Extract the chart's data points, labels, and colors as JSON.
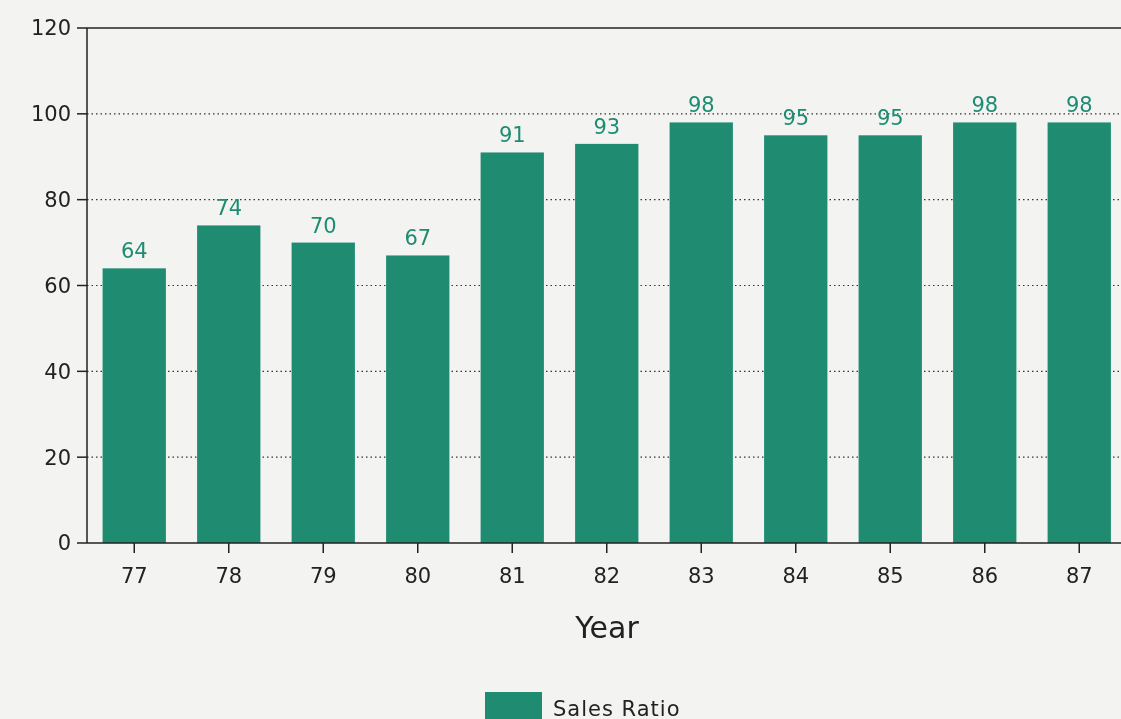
{
  "chart_data": {
    "type": "bar",
    "xlabel": "Year",
    "categories": [
      "77",
      "78",
      "79",
      "80",
      "81",
      "82",
      "83",
      "84",
      "85",
      "86",
      "87"
    ],
    "series": [
      {
        "name": "Sales Ratio",
        "color": "#1f8c72",
        "values": [
          64,
          74,
          70,
          67,
          91,
          93,
          98,
          95,
          95,
          98,
          98
        ]
      }
    ],
    "ylim": [
      0,
      120
    ],
    "yticks": [
      0,
      20,
      40,
      60,
      80,
      100,
      120
    ],
    "grid": "y",
    "data_labels": true,
    "legend": "bottom"
  }
}
